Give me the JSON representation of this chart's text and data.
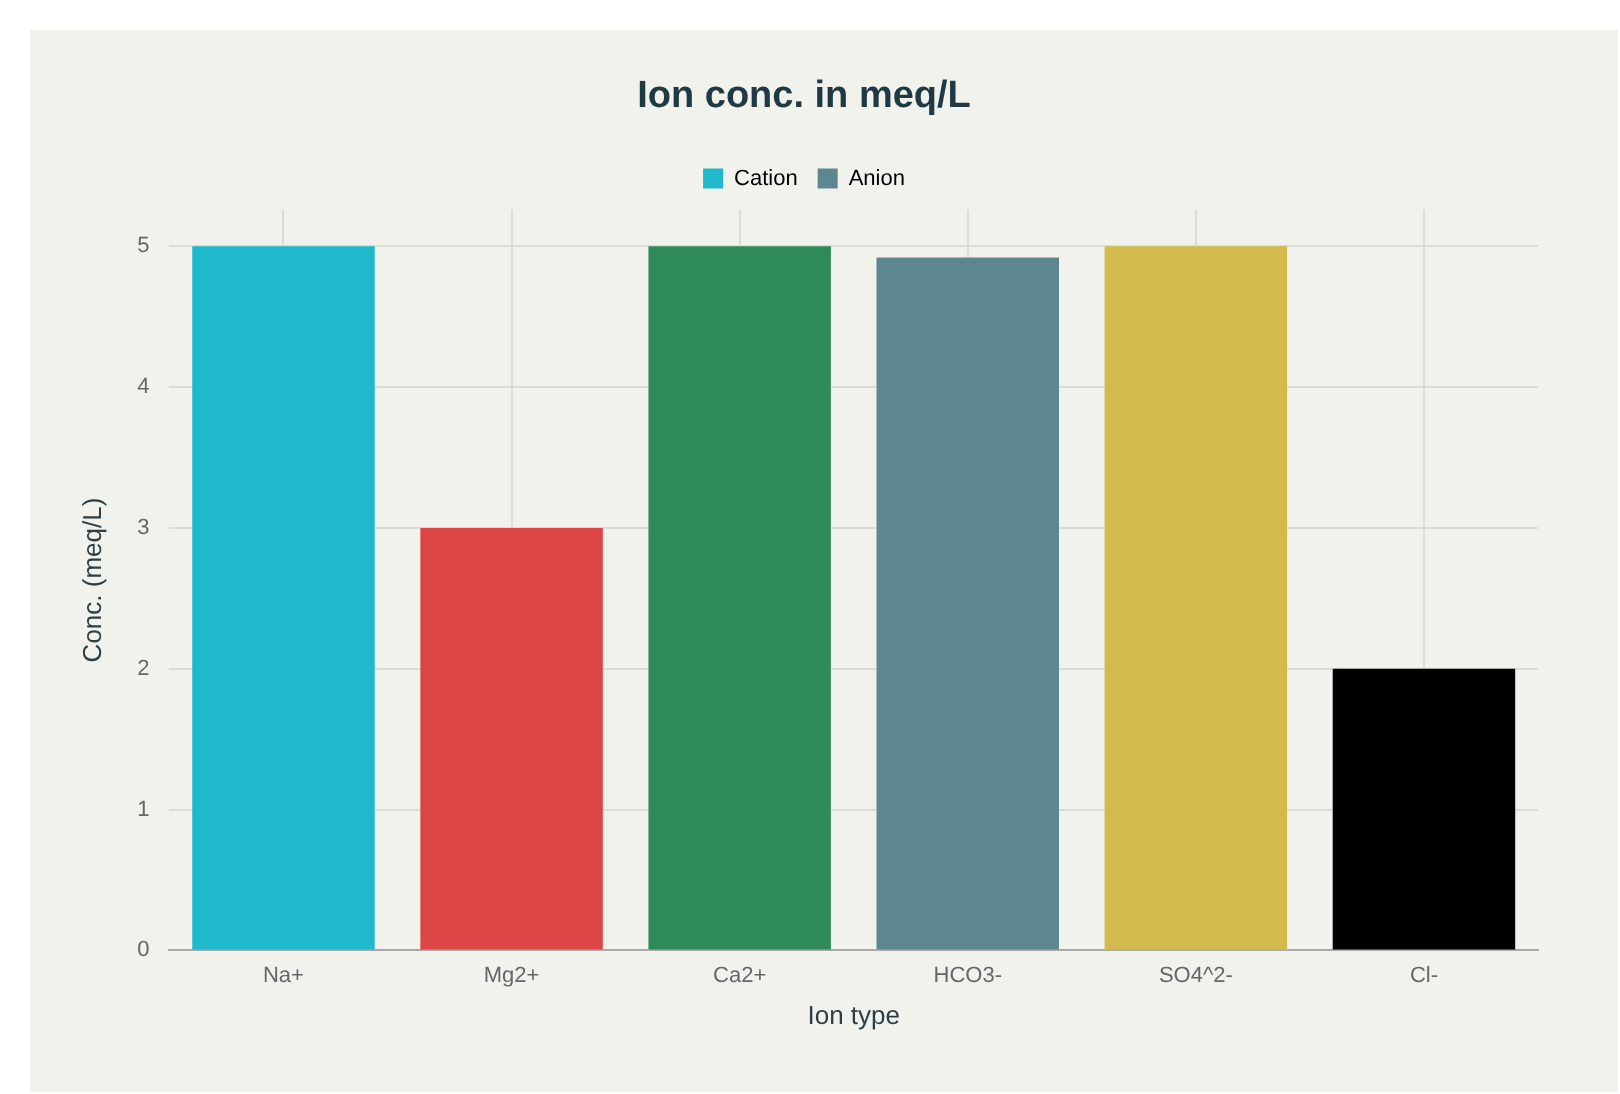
{
  "chart_data": {
    "type": "bar",
    "title": "Ion conc. in meq/L",
    "xlabel": "Ion type",
    "ylabel": "Conc. (meq/L)",
    "categories": [
      "Na+",
      "Mg2+",
      "Ca2+",
      "HCO3-",
      "SO4^2-",
      "Cl-"
    ],
    "series": [
      {
        "name": "Cation",
        "color": "#1fb8cd",
        "colors": [
          "#1fb8cd",
          "#db4545",
          "#2e8b57",
          null,
          null,
          null
        ],
        "values": [
          5,
          3,
          5,
          null,
          null,
          null
        ]
      },
      {
        "name": "Anion",
        "color": "#5d878f",
        "colors": [
          null,
          null,
          null,
          "#5d878f",
          "#d2ba4c",
          "#000000"
        ],
        "values": [
          null,
          null,
          null,
          4.92,
          5,
          2
        ]
      }
    ],
    "ylim": [
      0,
      5.26
    ],
    "yticks": [
      0,
      1,
      2,
      3,
      4,
      5
    ],
    "grid": true,
    "legend": "top"
  }
}
